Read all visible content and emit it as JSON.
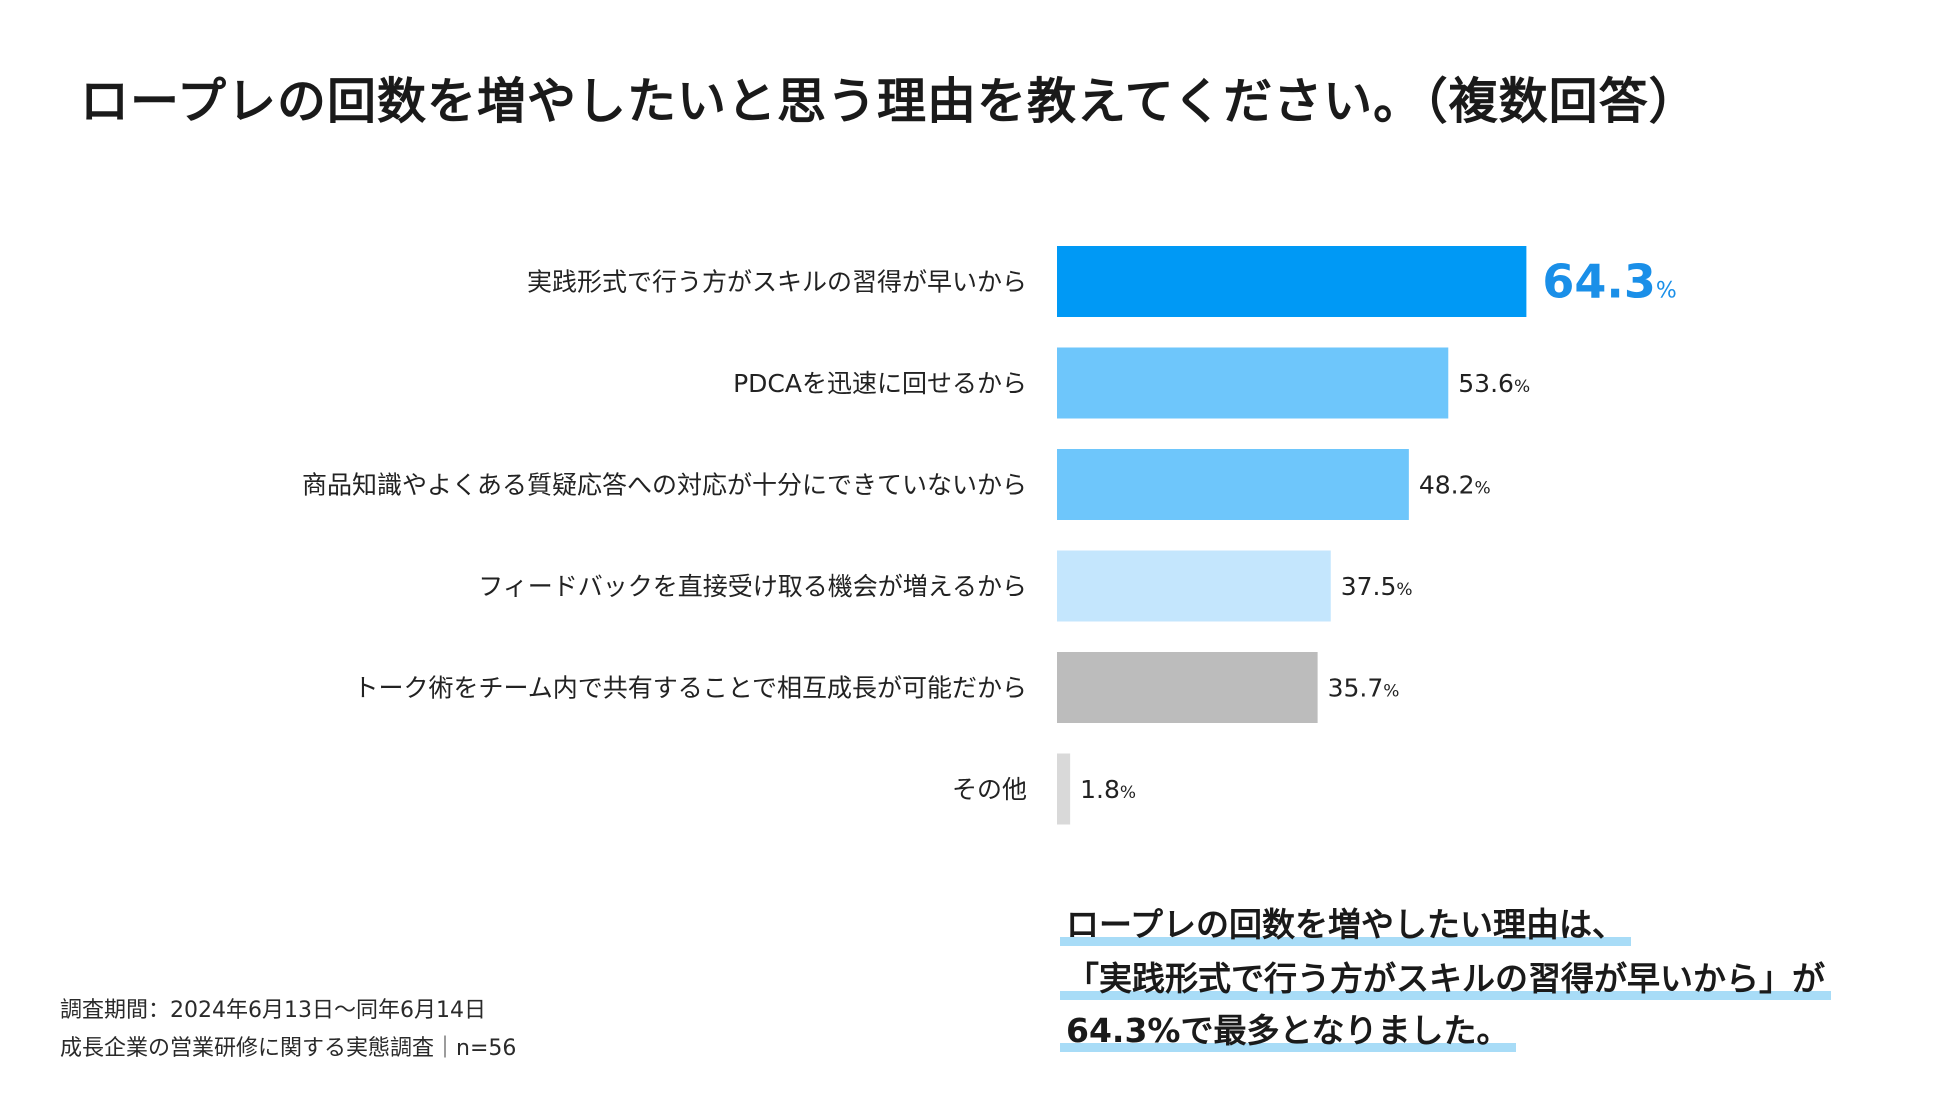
{
  "title": "ロープレの回数を増やしたいと思う理由を教えてください。（複数回答）",
  "chart_data": {
    "type": "bar",
    "orientation": "horizontal",
    "categories": [
      "実践形式で行う方がスキルの習得が早いから",
      "PDCAを迅速に回せるから",
      "商品知識やよくある質疑応答への対応が十分にできていないから",
      "フィードバックを直接受け取る機会が増えるから",
      "トーク術をチーム内で共有することで相互成長が可能だから",
      "その他"
    ],
    "values": [
      64.3,
      53.6,
      48.2,
      37.5,
      35.7,
      1.8
    ],
    "unit": "%",
    "colors": [
      "#0099f5",
      "#6ec6fb",
      "#6ec6fb",
      "#c4e6fd",
      "#bcbcbc",
      "#d9d9d9"
    ],
    "highlight_color": "#1a8fe8",
    "grid": false
  },
  "footnote": {
    "period": "調査期間：2024年6月13日〜同年6月14日",
    "source": "成長企業の営業研修に関する実態調査｜n=56"
  },
  "summary": {
    "line1": "ロープレの回数を増やしたい理由は、",
    "line2": "「実践形式で行う方がスキルの習得が早いから」が",
    "line3": "64.3%で最多となりました。"
  }
}
